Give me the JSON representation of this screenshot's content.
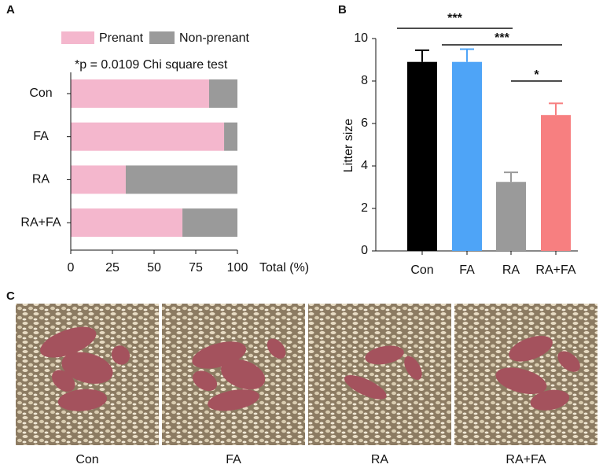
{
  "chart_data": [
    {
      "type": "bar",
      "panel_label": "A",
      "orientation": "horizontal",
      "stacked": true,
      "annotation": "*p = 0.0109  Chi square test",
      "categories": [
        "Con",
        "FA",
        "RA",
        "RA+FA"
      ],
      "series": [
        {
          "name": "Prenant",
          "color": "#f4b7cd",
          "values": [
            83,
            92,
            33,
            67
          ]
        },
        {
          "name": "Non-prenant",
          "color": "#9a9a9a",
          "values": [
            17,
            8,
            67,
            33
          ]
        }
      ],
      "xlim": [
        0,
        100
      ],
      "xticks": [
        0,
        25,
        50,
        75,
        100
      ],
      "xlabel": "Total (%)",
      "legend": "top"
    },
    {
      "type": "bar",
      "panel_label": "B",
      "orientation": "vertical",
      "categories": [
        "Con",
        "FA",
        "RA",
        "RA+FA"
      ],
      "values": [
        8.9,
        8.9,
        3.25,
        6.4
      ],
      "errors": [
        0.55,
        0.6,
        0.45,
        0.55
      ],
      "colors": [
        "#000000",
        "#4ea4f7",
        "#9a9a9a",
        "#f77f80"
      ],
      "ylim": [
        0,
        10
      ],
      "yticks": [
        0,
        2,
        4,
        6,
        8,
        10
      ],
      "ylabel": "Litter size",
      "annotations": [
        {
          "text": "***",
          "from": "Con",
          "to": "RA"
        },
        {
          "text": "***",
          "from": "FA",
          "to": "RA+FA"
        },
        {
          "text": "*",
          "from": "RA",
          "to": "RA+FA"
        }
      ]
    }
  ],
  "photos": {
    "panel_label": "C",
    "captions": [
      "Con",
      "FA",
      "RA",
      "RA+FA"
    ]
  }
}
